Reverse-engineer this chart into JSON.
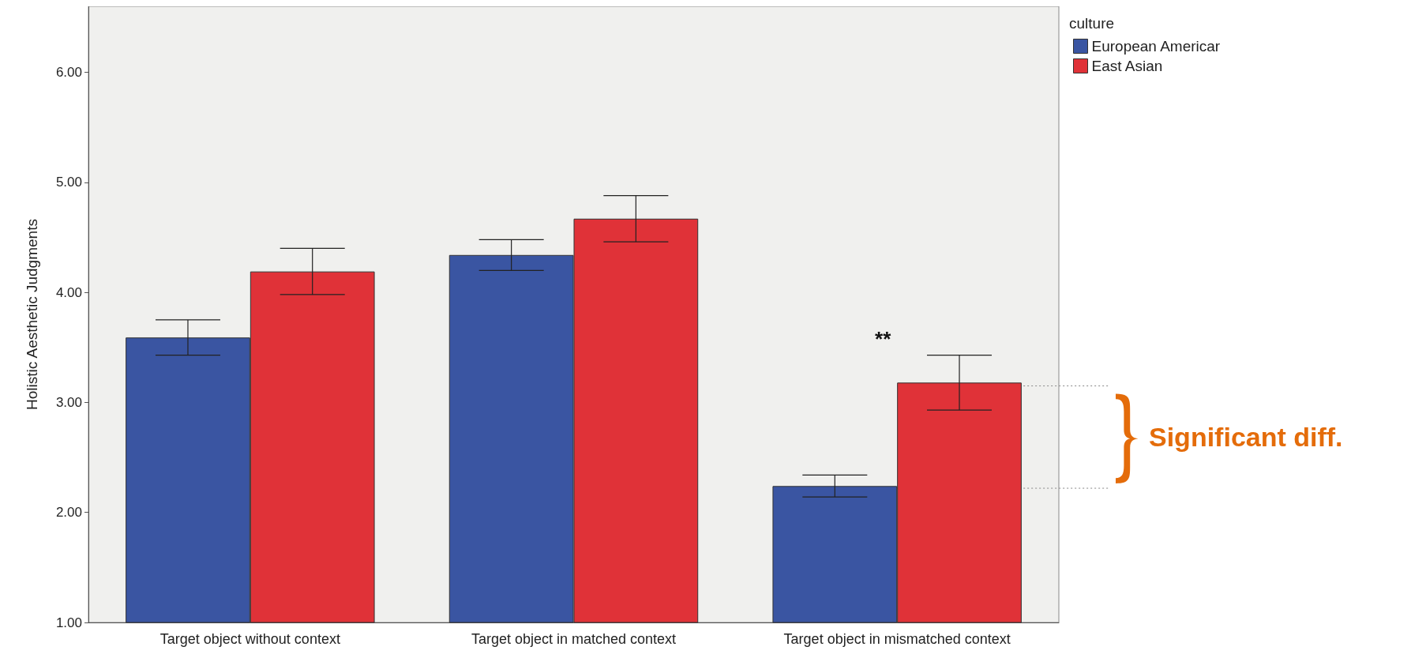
{
  "chart_data": {
    "type": "bar",
    "ylabel": "Holistic Aesthetic Judgments",
    "legend_title": "culture",
    "legend": "top right",
    "grid": false,
    "categories": [
      "Target object without context",
      "Target object in matched context",
      "Target object in mismatched context"
    ],
    "ylim": [
      1,
      6.6
    ],
    "yticks": [
      {
        "value": 1,
        "label": "1.00"
      },
      {
        "value": 2,
        "label": "2.00"
      },
      {
        "value": 3,
        "label": "3.00"
      },
      {
        "value": 4,
        "label": "4.00"
      },
      {
        "value": 5,
        "label": "5.00"
      },
      {
        "value": 6,
        "label": "6.00"
      }
    ],
    "series": [
      {
        "name": "European Americar",
        "color": "#3a55a2",
        "values": [
          3.59,
          4.34,
          2.24
        ],
        "errors": [
          0.16,
          0.14,
          0.1
        ]
      },
      {
        "name": "East Asian",
        "color": "#e03238",
        "values": [
          4.19,
          4.67,
          3.18
        ],
        "errors": [
          0.21,
          0.21,
          0.25
        ]
      }
    ],
    "ref_lines": [
      {
        "axis": "y",
        "value": 3.15,
        "color": "#888888",
        "line_style": "dotted"
      },
      {
        "axis": "y",
        "value": 2.22,
        "color": "#888888",
        "line_style": "dotted"
      }
    ],
    "annotations": [
      "**",
      "Significant diff."
    ]
  }
}
